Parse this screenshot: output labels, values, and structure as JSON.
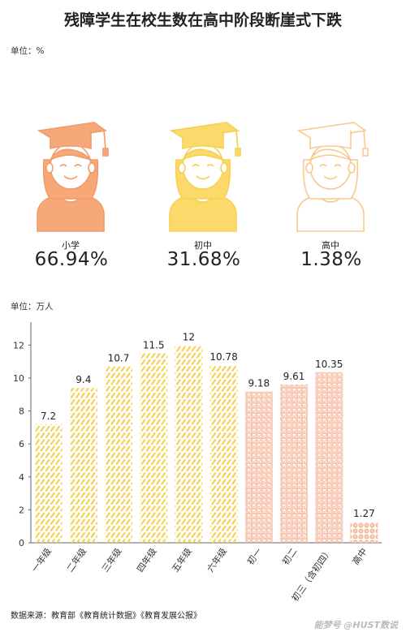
{
  "title": "残障学生在校生数在高中阶段断崖式下跌",
  "top_unit": "单位：%",
  "bottom_unit": "单位：万人",
  "share": [
    {
      "label": "小学",
      "value": "66.94%",
      "color": "#f7a878",
      "stroke": "#f29b6a"
    },
    {
      "label": "初中",
      "value": "31.68%",
      "color": "#fcd96a",
      "stroke": "#f5d153"
    },
    {
      "label": "高中",
      "value": "1.38%",
      "color": "#ffffff",
      "stroke": "#f8c98f"
    }
  ],
  "chart_data": {
    "type": "bar",
    "categories": [
      "一年级",
      "二年级",
      "三年级",
      "四年级",
      "五年级",
      "六年级",
      "初一",
      "初二",
      "初三（含初四）",
      "高中"
    ],
    "values": [
      7.2,
      9.4,
      10.7,
      11.5,
      12,
      10.78,
      9.18,
      9.61,
      10.35,
      1.27
    ],
    "value_labels": [
      "7.2",
      "9.4",
      "10.7",
      "11.5",
      "12",
      "10.78",
      "9.18",
      "9.61",
      "10.35",
      "1.27"
    ],
    "ylim": [
      0,
      13
    ],
    "yticks": [
      "0",
      "2",
      "4",
      "6",
      "8",
      "10",
      "12"
    ],
    "colors": {
      "primary": "#f5d153",
      "secondary": "#f6b79c",
      "high_school": "#f6b79c"
    }
  },
  "source": "数据来源：教育部《教育统计数据》《教育发展公报》",
  "watermark": "能梦号 @HUST数说"
}
